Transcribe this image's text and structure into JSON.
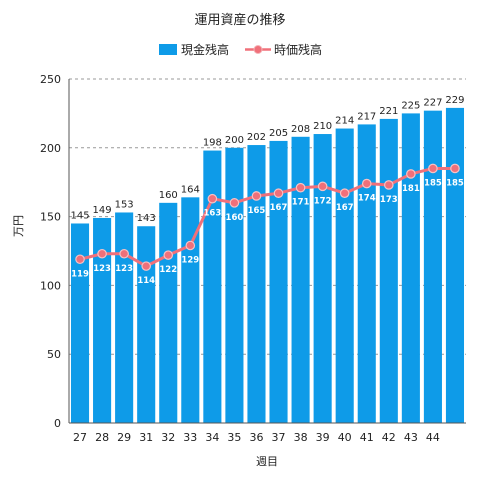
{
  "chart_data": {
    "type": "bar",
    "title": "運用資産の推移",
    "xlabel": "週目",
    "ylabel": "万円",
    "ylim": [
      0,
      250
    ],
    "yticks": [
      0,
      50,
      100,
      150,
      200,
      250
    ],
    "grid": true,
    "legend_position": "top-center",
    "categories": [
      "27",
      "28",
      "29",
      "31",
      "32",
      "33",
      "34",
      "35",
      "36",
      "37",
      "38",
      "39",
      "40",
      "41",
      "42",
      "43",
      "44",
      ""
    ],
    "series": [
      {
        "name": "現金残高",
        "type": "bar",
        "color": "#0e9be8",
        "values": [
          145,
          149,
          153,
          143,
          160,
          164,
          198,
          200,
          202,
          205,
          208,
          210,
          214,
          217,
          221,
          225,
          227,
          229
        ]
      },
      {
        "name": "時価残高",
        "type": "line",
        "color": "#f0707a",
        "values": [
          119,
          123,
          123,
          114,
          122,
          129,
          163,
          160,
          165,
          167,
          171,
          172,
          167,
          174,
          173,
          181,
          185,
          185
        ]
      }
    ]
  }
}
